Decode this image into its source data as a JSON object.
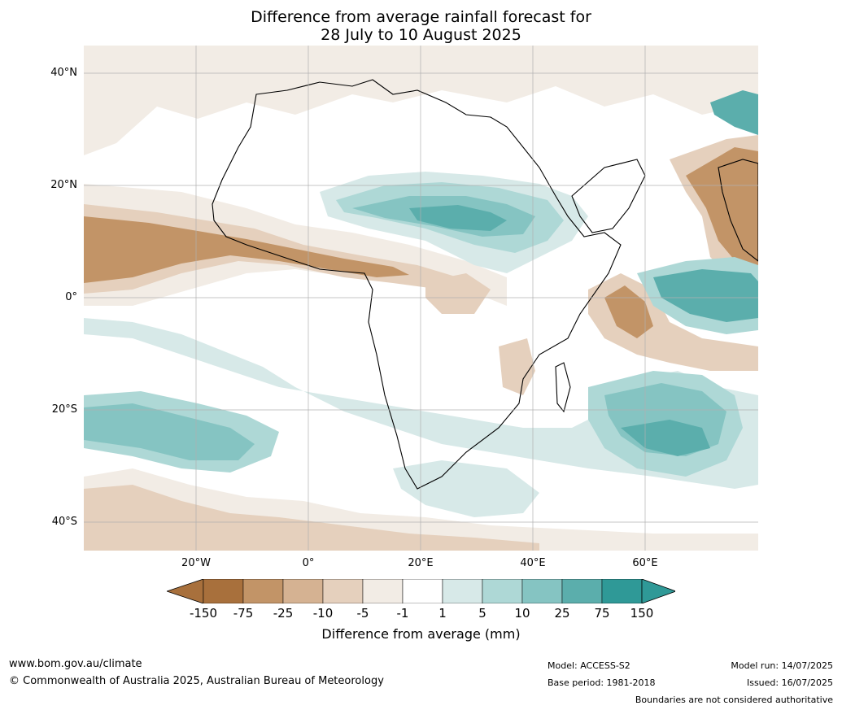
{
  "title": {
    "line1": "Difference from average rainfall forecast for",
    "line2": "28 July to 10 August 2025"
  },
  "map": {
    "region": "Africa",
    "lat_labels": [
      "40°N",
      "20°N",
      "0°",
      "20°S",
      "40°S"
    ],
    "lon_labels": [
      "20°W",
      "0°",
      "20°E",
      "40°E",
      "60°E"
    ],
    "grid": true
  },
  "colorbar": {
    "ticks": [
      "-150",
      "-75",
      "-25",
      "-10",
      "-5",
      "-1",
      "1",
      "5",
      "10",
      "25",
      "75",
      "150"
    ],
    "colors": [
      "#a8703c",
      "#c29467",
      "#d5b292",
      "#e5d0bd",
      "#f2ece5",
      "#ffffff",
      "#d7e9e8",
      "#aed8d6",
      "#85c4c2",
      "#5baeac",
      "#2f9997",
      "#2f9997"
    ],
    "label": "Difference from average (mm)"
  },
  "footer": {
    "url": "www.bom.gov.au/climate",
    "copyright": "© Commonwealth of Australia 2025, Australian Bureau of Meteorology",
    "model": "Model: ACCESS-S2",
    "base_period": "Base period: 1981-2018",
    "model_run": "Model run: 14/07/2025",
    "issued": "Issued: 16/07/2025",
    "disclaimer": "Boundaries are not considered authoritative"
  }
}
